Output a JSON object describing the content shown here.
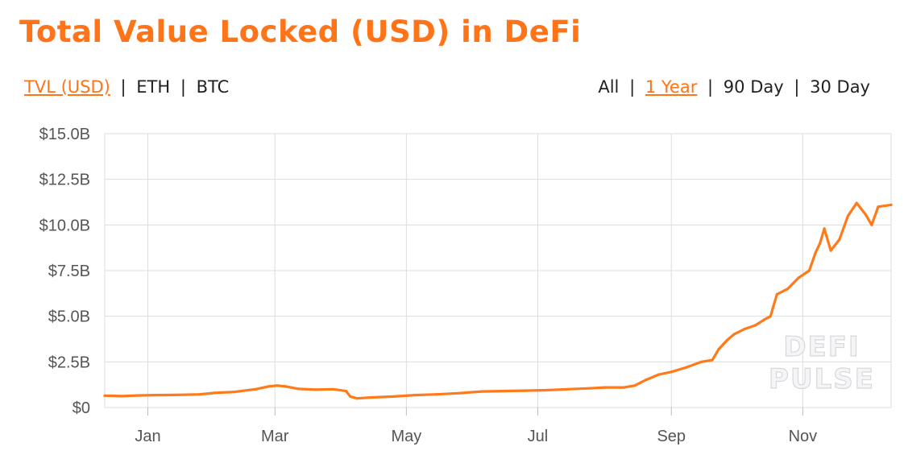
{
  "header": {
    "title": "Total Value Locked (USD) in DeFi"
  },
  "metric_toggles": [
    {
      "label": "TVL (USD)",
      "active": true
    },
    {
      "label": "ETH",
      "active": false
    },
    {
      "label": "BTC",
      "active": false
    }
  ],
  "range_toggles": [
    {
      "label": "All",
      "active": false
    },
    {
      "label": "1 Year",
      "active": true
    },
    {
      "label": "90 Day",
      "active": false
    },
    {
      "label": "30 Day",
      "active": false
    }
  ],
  "separator": "|",
  "watermark": {
    "line1": "DEFI",
    "line2": "PULSE"
  },
  "colors": {
    "accent": "#ff7418",
    "line": "#ff7a1a",
    "grid": "#dddddd",
    "tick_text": "#555555"
  },
  "chart_data": {
    "type": "line",
    "title": "Total Value Locked (USD) in DeFi",
    "xlabel": "",
    "ylabel": "",
    "ylim": [
      0,
      15.0
    ],
    "yticks": [
      {
        "value": 0,
        "label": "$0"
      },
      {
        "value": 2.5,
        "label": "$2.5B"
      },
      {
        "value": 5.0,
        "label": "$5.0B"
      },
      {
        "value": 7.5,
        "label": "$7.5B"
      },
      {
        "value": 10.0,
        "label": "$10.0B"
      },
      {
        "value": 12.5,
        "label": "$12.5B"
      },
      {
        "value": 15.0,
        "label": "$15.0B"
      }
    ],
    "xlim": [
      "2020-12-12",
      "2021-12-12"
    ],
    "xticks": [
      {
        "value": "2021-01-01",
        "label": "Jan"
      },
      {
        "value": "2021-03-01",
        "label": "Mar"
      },
      {
        "value": "2021-05-01",
        "label": "May"
      },
      {
        "value": "2021-07-01",
        "label": "Jul"
      },
      {
        "value": "2021-09-01",
        "label": "Sep"
      },
      {
        "value": "2021-11-01",
        "label": "Nov"
      }
    ],
    "grid": true,
    "series": [
      {
        "points": [
          [
            "2020-12-12",
            0.65
          ],
          [
            "2020-12-20",
            0.62
          ],
          [
            "2020-12-28",
            0.66
          ],
          [
            "2021-01-05",
            0.68
          ],
          [
            "2021-01-15",
            0.69
          ],
          [
            "2021-01-25",
            0.72
          ],
          [
            "2021-02-01",
            0.8
          ],
          [
            "2021-02-10",
            0.85
          ],
          [
            "2021-02-20",
            1.0
          ],
          [
            "2021-02-26",
            1.15
          ],
          [
            "2021-03-02",
            1.2
          ],
          [
            "2021-03-06",
            1.15
          ],
          [
            "2021-03-12",
            1.02
          ],
          [
            "2021-03-20",
            0.98
          ],
          [
            "2021-03-28",
            1.0
          ],
          [
            "2021-04-03",
            0.9
          ],
          [
            "2021-04-05",
            0.6
          ],
          [
            "2021-04-08",
            0.5
          ],
          [
            "2021-04-15",
            0.55
          ],
          [
            "2021-04-25",
            0.6
          ],
          [
            "2021-05-05",
            0.68
          ],
          [
            "2021-05-15",
            0.72
          ],
          [
            "2021-05-25",
            0.78
          ],
          [
            "2021-06-05",
            0.88
          ],
          [
            "2021-06-15",
            0.9
          ],
          [
            "2021-06-25",
            0.92
          ],
          [
            "2021-07-05",
            0.95
          ],
          [
            "2021-07-15",
            1.0
          ],
          [
            "2021-07-25",
            1.05
          ],
          [
            "2021-08-01",
            1.1
          ],
          [
            "2021-08-10",
            1.1
          ],
          [
            "2021-08-15",
            1.2
          ],
          [
            "2021-08-20",
            1.5
          ],
          [
            "2021-08-26",
            1.8
          ],
          [
            "2021-09-01",
            1.95
          ],
          [
            "2021-09-08",
            2.2
          ],
          [
            "2021-09-15",
            2.5
          ],
          [
            "2021-09-20",
            2.6
          ],
          [
            "2021-09-23",
            3.2
          ],
          [
            "2021-09-27",
            3.7
          ],
          [
            "2021-09-30",
            4.0
          ],
          [
            "2021-10-05",
            4.3
          ],
          [
            "2021-10-10",
            4.5
          ],
          [
            "2021-10-14",
            4.8
          ],
          [
            "2021-10-17",
            5.0
          ],
          [
            "2021-10-20",
            6.2
          ],
          [
            "2021-10-25",
            6.5
          ],
          [
            "2021-10-30",
            7.1
          ],
          [
            "2021-11-04",
            7.5
          ],
          [
            "2021-11-07",
            8.5
          ],
          [
            "2021-11-09",
            9.0
          ],
          [
            "2021-11-11",
            9.8
          ],
          [
            "2021-11-14",
            8.6
          ],
          [
            "2021-11-18",
            9.2
          ],
          [
            "2021-11-22",
            10.5
          ],
          [
            "2021-11-26",
            11.2
          ],
          [
            "2021-11-30",
            10.6
          ],
          [
            "2021-12-03",
            10.0
          ],
          [
            "2021-12-06",
            11.0
          ],
          [
            "2021-12-12",
            11.1
          ]
        ]
      }
    ]
  }
}
